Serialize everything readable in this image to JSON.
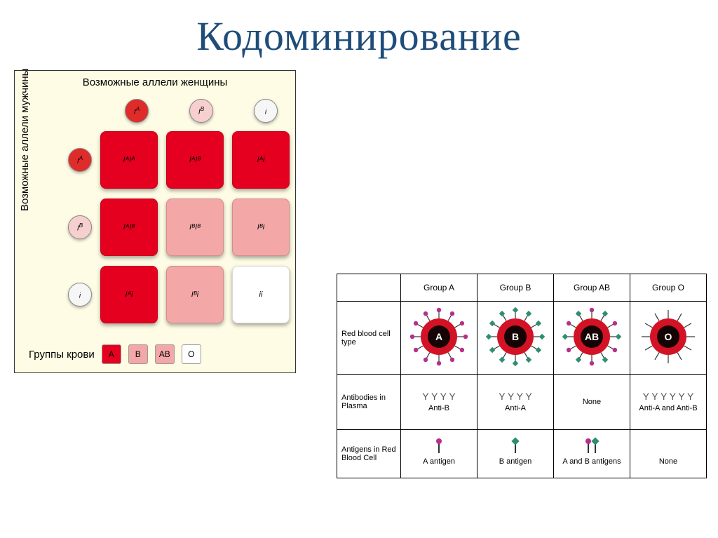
{
  "title": "Кодоминирование",
  "punnett": {
    "top_label": "Возможные аллели женщины",
    "left_label": "Возможные аллели мужчины",
    "legend_label": "Группы крови",
    "colors": {
      "red": "#e6001f",
      "pink": "#f4a7a7",
      "white": "#ffffff",
      "circle_red": "#e02b2b",
      "circle_pink": "#f7cfcf",
      "circle_white": "#f6f6f6"
    },
    "col_headers": [
      {
        "label": "I",
        "sup": "A",
        "color": "circle_red"
      },
      {
        "label": "I",
        "sup": "B",
        "color": "circle_pink"
      },
      {
        "label": "i",
        "sup": "",
        "color": "circle_white"
      }
    ],
    "row_headers": [
      {
        "label": "I",
        "sup": "A",
        "color": "circle_red"
      },
      {
        "label": "I",
        "sup": "B",
        "color": "circle_pink"
      },
      {
        "label": "i",
        "sup": "",
        "color": "circle_white"
      }
    ],
    "cells": [
      [
        {
          "geno": "IᴬIᴬ",
          "color": "red"
        },
        {
          "geno": "IᴬIᴮ",
          "color": "red"
        },
        {
          "geno": "Iᴬi",
          "color": "red"
        }
      ],
      [
        {
          "geno": "IᴬIᴮ",
          "color": "red"
        },
        {
          "geno": "IᴮIᴮ",
          "color": "pink"
        },
        {
          "geno": "Iᴮi",
          "color": "pink"
        }
      ],
      [
        {
          "geno": "Iᴬi",
          "color": "red"
        },
        {
          "geno": "Iᴮi",
          "color": "pink"
        },
        {
          "geno": "ii",
          "color": "white"
        }
      ]
    ],
    "legend": [
      {
        "label": "A",
        "color": "red"
      },
      {
        "label": "B",
        "color": "pink"
      },
      {
        "label": "AB",
        "color": "pink"
      },
      {
        "label": "O",
        "color": "white"
      }
    ]
  },
  "blood": {
    "col_headers": [
      "Group A",
      "Group B",
      "Group AB",
      "Group O"
    ],
    "row1_label": "Red blood cell type",
    "row2_label": "Antibodies in Plasma",
    "row3_label": "Antigens in Red Blood Cell",
    "cells": {
      "A": {
        "letter": "A",
        "spikesA": 12,
        "spikesB": 0
      },
      "B": {
        "letter": "B",
        "spikesA": 0,
        "spikesB": 12
      },
      "AB": {
        "letter": "AB",
        "spikesA": 6,
        "spikesB": 6
      },
      "O": {
        "letter": "O",
        "spikesA": 0,
        "spikesB": 0,
        "bare": 12
      }
    },
    "antibodies": {
      "A": "Anti-B",
      "B": "Anti-A",
      "AB": "None",
      "O": "Anti-A and Anti-B"
    },
    "antigens": {
      "A": {
        "label": "A antigen",
        "a": true,
        "b": false
      },
      "B": {
        "label": "B antigen",
        "a": false,
        "b": true
      },
      "AB": {
        "label": "A and B antigens",
        "a": true,
        "b": true
      },
      "O": {
        "label": "None",
        "a": false,
        "b": false
      }
    },
    "style": {
      "cell_main": "#d31226",
      "cell_inner": "#160404",
      "spikeA": "#b52f8b",
      "spikeB": "#2e8f6f",
      "antibody_color": "#555"
    }
  }
}
